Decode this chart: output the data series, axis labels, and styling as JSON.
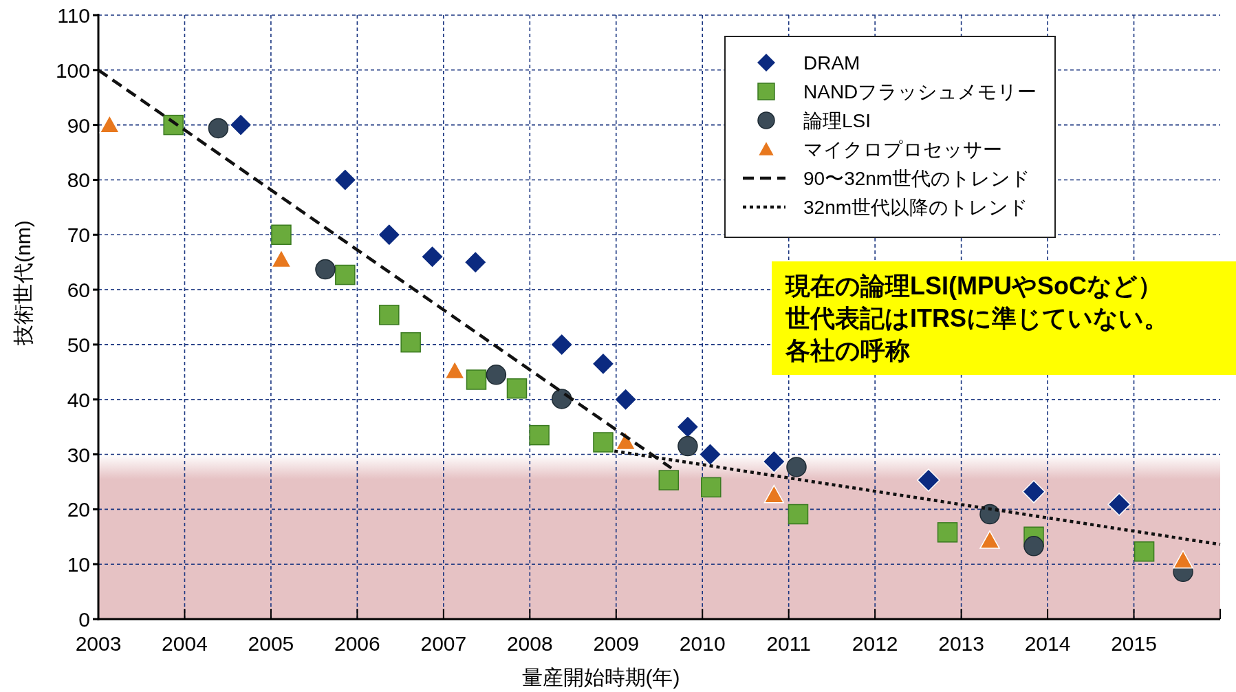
{
  "chart_data": {
    "type": "scatter",
    "xlabel": "量産開始時期(年)",
    "ylabel": "技術世代(nm)",
    "xlim": [
      2003,
      2016
    ],
    "xticks": [
      2003,
      2004,
      2005,
      2006,
      2007,
      2008,
      2009,
      2010,
      2011,
      2012,
      2013,
      2014,
      2015
    ],
    "ylim": [
      0,
      110
    ],
    "yticks": [
      0,
      10,
      20,
      30,
      40,
      50,
      60,
      70,
      80,
      90,
      100,
      110
    ],
    "grid": true,
    "legend": "top right",
    "bands": [
      {
        "axis": "y",
        "from": 0,
        "to": 30,
        "color": "#e6c2c4"
      }
    ],
    "annotations": [
      "現在の論理LSI(MPUやSoCなど）",
      "世代表記はITRSに準じていない。",
      "各社の呼称"
    ],
    "series": [
      {
        "name": "DRAM",
        "color": "#0b2a80",
        "marker": "diamond",
        "x": [
          2004.65,
          2005.86,
          2006.37,
          2006.87,
          2007.37,
          2008.37,
          2008.85,
          2009.11,
          2009.83,
          2010.09,
          2010.83,
          2012.62,
          2013.84,
          2014.83
        ],
        "values": [
          90,
          80,
          70,
          66,
          65,
          50,
          46.5,
          40,
          35,
          30,
          28.7,
          25.3,
          23.2,
          20.9
        ]
      },
      {
        "name": "NANDフラッシュメモリー",
        "color": "#6aab3c",
        "marker": "square",
        "x": [
          2003.87,
          2005.12,
          2005.86,
          2006.37,
          2006.62,
          2007.38,
          2007.85,
          2008.11,
          2008.85,
          2009.61,
          2010.1,
          2011.11,
          2012.84,
          2013.84,
          2015.12
        ],
        "values": [
          90,
          70,
          62.7,
          55.4,
          50.4,
          43.6,
          42,
          33.5,
          32.2,
          25.3,
          24,
          19.1,
          15.8,
          15,
          12.3
        ]
      },
      {
        "name": "論理LSI",
        "color": "#3b4b57",
        "marker": "circle",
        "x": [
          2004.39,
          2005.63,
          2007.61,
          2008.37,
          2009.83,
          2011.09,
          2013.33,
          2013.84,
          2015.57
        ],
        "values": [
          89.4,
          63.7,
          44.5,
          40.1,
          31.5,
          27.7,
          19.1,
          13.3,
          8.6
        ]
      },
      {
        "name": "マイクロプロセッサー",
        "color": "#e8781e",
        "marker": "triangle",
        "x": [
          2003.13,
          2005.12,
          2007.13,
          2009.11,
          2010.83,
          2013.33,
          2015.57
        ],
        "values": [
          90,
          65.5,
          45.2,
          32.3,
          22.6,
          14.3,
          10.7
        ]
      },
      {
        "name": "90〜32nm世代のトレンド",
        "type": "line",
        "color": "#111111",
        "line_style": "dashed",
        "marker": "none",
        "x": [
          2003,
          2009.64
        ],
        "values": [
          100,
          27.5
        ]
      },
      {
        "name": "32nm世代以降のトレンド",
        "type": "line",
        "color": "#111111",
        "line_style": "dotted",
        "marker": "none",
        "x": [
          2008.98,
          2016
        ],
        "values": [
          30.6,
          13.6
        ]
      }
    ]
  }
}
